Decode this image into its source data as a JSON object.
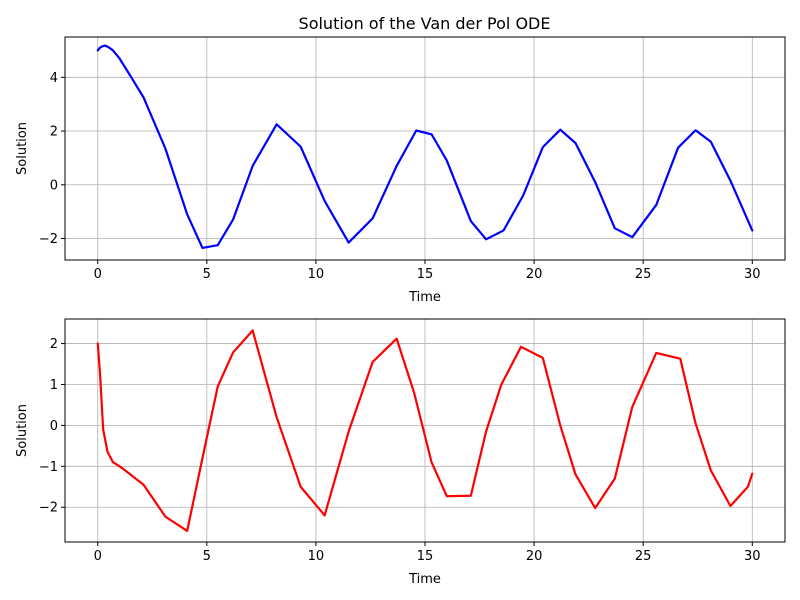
{
  "chart_data": {
    "title": "Solution of the Van der Pol ODE",
    "type": "line",
    "grid": true,
    "panels": [
      {
        "xlabel": "Time",
        "ylabel": "Solution",
        "xlim": [
          -1.5,
          31.5
        ],
        "ylim": [
          -2.8,
          5.5
        ],
        "xticks": [
          0,
          5,
          10,
          15,
          20,
          25,
          30
        ],
        "yticks": [
          -2,
          0,
          2,
          4
        ],
        "series": [
          {
            "color": "#0000ff",
            "x": [
              0.0,
              0.1,
              0.2,
              0.35,
              0.5,
              0.7,
              1.0,
              1.5,
              2.1,
              3.1,
              4.1,
              4.8,
              5.5,
              6.2,
              7.1,
              8.2,
              9.3,
              10.4,
              11.5,
              12.6,
              13.7,
              14.6,
              15.3,
              16.0,
              17.1,
              17.8,
              18.6,
              19.5,
              20.4,
              21.2,
              21.9,
              22.8,
              23.7,
              24.5,
              25.6,
              26.6,
              27.4,
              28.1,
              29.0,
              30.0
            ],
            "y": [
              5.0,
              5.1,
              5.15,
              5.18,
              5.12,
              5.0,
              4.7,
              4.05,
              3.25,
              1.35,
              -1.1,
              -2.35,
              -2.25,
              -1.3,
              0.7,
              2.25,
              1.42,
              -0.6,
              -2.15,
              -1.25,
              0.7,
              2.02,
              1.88,
              0.9,
              -1.35,
              -2.03,
              -1.7,
              -0.4,
              1.4,
              2.05,
              1.55,
              0.1,
              -1.62,
              -1.95,
              -0.75,
              1.38,
              2.03,
              1.6,
              0.15,
              -1.7
            ]
          }
        ]
      },
      {
        "xlabel": "Time",
        "ylabel": "Solution",
        "xlim": [
          -1.5,
          31.5
        ],
        "ylim": [
          -2.85,
          2.6
        ],
        "xticks": [
          0,
          5,
          10,
          15,
          20,
          25,
          30
        ],
        "yticks": [
          -2,
          -1,
          0,
          1,
          2
        ],
        "series": [
          {
            "color": "#ff0000",
            "x": [
              0.0,
              0.1,
              0.25,
              0.45,
              0.7,
              1.0,
              1.5,
              2.1,
              3.1,
              4.1,
              4.8,
              5.5,
              6.2,
              7.1,
              8.2,
              9.3,
              10.4,
              11.5,
              12.6,
              13.7,
              14.5,
              15.3,
              16.0,
              17.1,
              17.8,
              18.5,
              19.4,
              20.4,
              21.2,
              21.9,
              22.8,
              23.7,
              24.5,
              25.6,
              26.7,
              27.4,
              28.1,
              29.0,
              29.8,
              30.0
            ],
            "y": [
              2.0,
              1.3,
              -0.1,
              -0.65,
              -0.9,
              -1.0,
              -1.2,
              -1.45,
              -2.23,
              -2.58,
              -0.8,
              0.95,
              1.78,
              2.32,
              0.2,
              -1.5,
              -2.2,
              -0.15,
              1.55,
              2.12,
              0.8,
              -0.9,
              -1.73,
              -1.72,
              -0.15,
              1.0,
              1.92,
              1.65,
              0.0,
              -1.2,
              -2.02,
              -1.3,
              0.45,
              1.77,
              1.63,
              0.05,
              -1.1,
              -1.97,
              -1.5,
              -1.18
            ]
          }
        ]
      }
    ]
  }
}
